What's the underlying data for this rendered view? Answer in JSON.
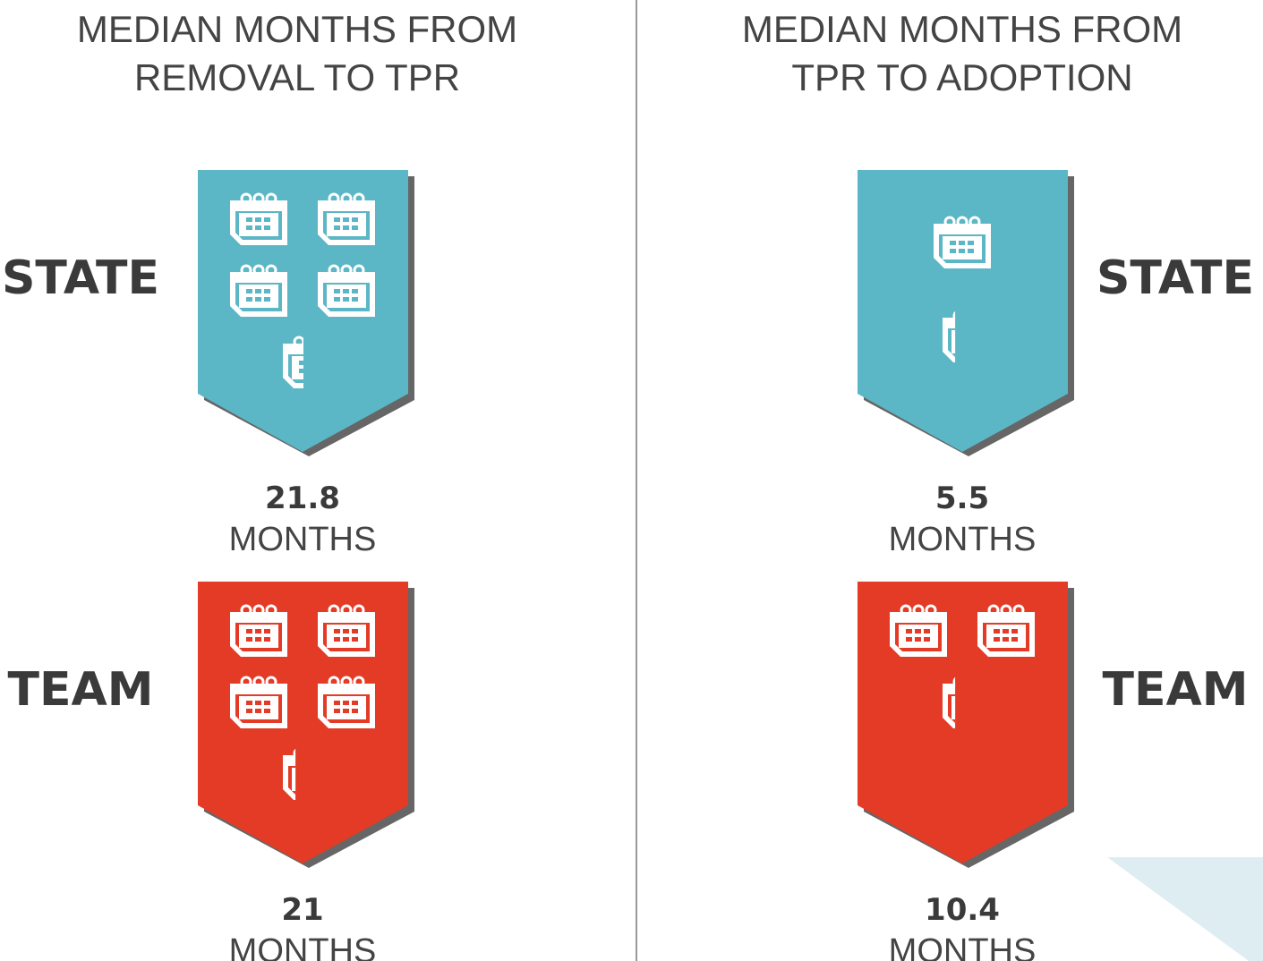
{
  "panels": [
    {
      "title": [
        "MEDIAN MONTHS FROM",
        "REMOVAL TO TPR"
      ],
      "groups": [
        {
          "label": "STATE",
          "value": 21.8,
          "unit": "MONTHS",
          "color": "#5bb6c5"
        },
        {
          "label": "TEAM",
          "value": 21,
          "unit": "MONTHS",
          "color": "#e33b26"
        }
      ]
    },
    {
      "title": [
        "MEDIAN MONTHS FROM",
        "TPR TO ADOPTION"
      ],
      "groups": [
        {
          "label": "STATE",
          "value": 5.5,
          "unit": "MONTHS",
          "color": "#5bb6c5"
        },
        {
          "label": "TEAM",
          "value": 10.4,
          "unit": "MONTHS",
          "color": "#e33b26"
        }
      ]
    }
  ]
}
